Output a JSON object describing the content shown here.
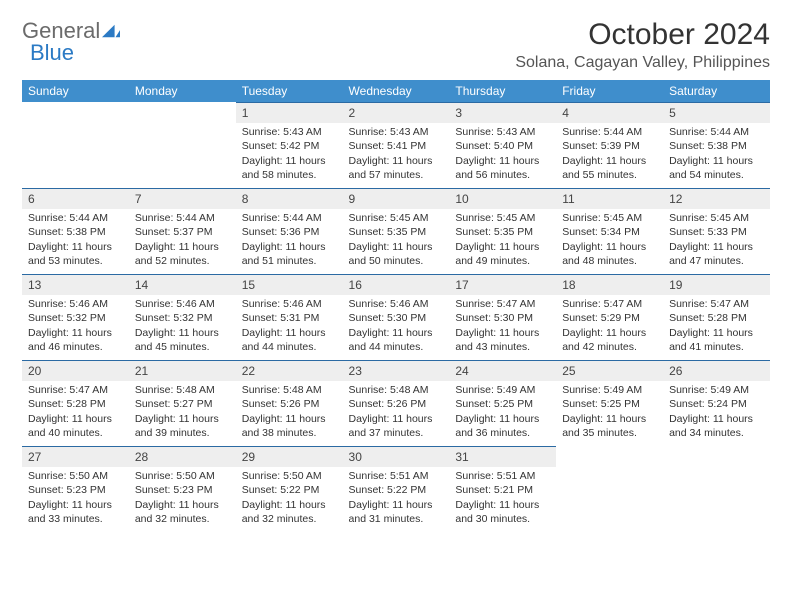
{
  "logo": {
    "word1": "General",
    "word2": "Blue"
  },
  "title": "October 2024",
  "location": "Solana, Cagayan Valley, Philippines",
  "colors": {
    "header_bg": "#3f8ecc",
    "daynum_bg": "#eeeeee",
    "row_border": "#2b6aa3",
    "logo_gray": "#6b6b6b",
    "logo_blue": "#2b7ac4"
  },
  "weekdays": [
    "Sunday",
    "Monday",
    "Tuesday",
    "Wednesday",
    "Thursday",
    "Friday",
    "Saturday"
  ],
  "first_weekday_index": 2,
  "days": [
    {
      "n": 1,
      "sr": "5:43 AM",
      "ss": "5:42 PM",
      "dl": "11 hours and 58 minutes."
    },
    {
      "n": 2,
      "sr": "5:43 AM",
      "ss": "5:41 PM",
      "dl": "11 hours and 57 minutes."
    },
    {
      "n": 3,
      "sr": "5:43 AM",
      "ss": "5:40 PM",
      "dl": "11 hours and 56 minutes."
    },
    {
      "n": 4,
      "sr": "5:44 AM",
      "ss": "5:39 PM",
      "dl": "11 hours and 55 minutes."
    },
    {
      "n": 5,
      "sr": "5:44 AM",
      "ss": "5:38 PM",
      "dl": "11 hours and 54 minutes."
    },
    {
      "n": 6,
      "sr": "5:44 AM",
      "ss": "5:38 PM",
      "dl": "11 hours and 53 minutes."
    },
    {
      "n": 7,
      "sr": "5:44 AM",
      "ss": "5:37 PM",
      "dl": "11 hours and 52 minutes."
    },
    {
      "n": 8,
      "sr": "5:44 AM",
      "ss": "5:36 PM",
      "dl": "11 hours and 51 minutes."
    },
    {
      "n": 9,
      "sr": "5:45 AM",
      "ss": "5:35 PM",
      "dl": "11 hours and 50 minutes."
    },
    {
      "n": 10,
      "sr": "5:45 AM",
      "ss": "5:35 PM",
      "dl": "11 hours and 49 minutes."
    },
    {
      "n": 11,
      "sr": "5:45 AM",
      "ss": "5:34 PM",
      "dl": "11 hours and 48 minutes."
    },
    {
      "n": 12,
      "sr": "5:45 AM",
      "ss": "5:33 PM",
      "dl": "11 hours and 47 minutes."
    },
    {
      "n": 13,
      "sr": "5:46 AM",
      "ss": "5:32 PM",
      "dl": "11 hours and 46 minutes."
    },
    {
      "n": 14,
      "sr": "5:46 AM",
      "ss": "5:32 PM",
      "dl": "11 hours and 45 minutes."
    },
    {
      "n": 15,
      "sr": "5:46 AM",
      "ss": "5:31 PM",
      "dl": "11 hours and 44 minutes."
    },
    {
      "n": 16,
      "sr": "5:46 AM",
      "ss": "5:30 PM",
      "dl": "11 hours and 44 minutes."
    },
    {
      "n": 17,
      "sr": "5:47 AM",
      "ss": "5:30 PM",
      "dl": "11 hours and 43 minutes."
    },
    {
      "n": 18,
      "sr": "5:47 AM",
      "ss": "5:29 PM",
      "dl": "11 hours and 42 minutes."
    },
    {
      "n": 19,
      "sr": "5:47 AM",
      "ss": "5:28 PM",
      "dl": "11 hours and 41 minutes."
    },
    {
      "n": 20,
      "sr": "5:47 AM",
      "ss": "5:28 PM",
      "dl": "11 hours and 40 minutes."
    },
    {
      "n": 21,
      "sr": "5:48 AM",
      "ss": "5:27 PM",
      "dl": "11 hours and 39 minutes."
    },
    {
      "n": 22,
      "sr": "5:48 AM",
      "ss": "5:26 PM",
      "dl": "11 hours and 38 minutes."
    },
    {
      "n": 23,
      "sr": "5:48 AM",
      "ss": "5:26 PM",
      "dl": "11 hours and 37 minutes."
    },
    {
      "n": 24,
      "sr": "5:49 AM",
      "ss": "5:25 PM",
      "dl": "11 hours and 36 minutes."
    },
    {
      "n": 25,
      "sr": "5:49 AM",
      "ss": "5:25 PM",
      "dl": "11 hours and 35 minutes."
    },
    {
      "n": 26,
      "sr": "5:49 AM",
      "ss": "5:24 PM",
      "dl": "11 hours and 34 minutes."
    },
    {
      "n": 27,
      "sr": "5:50 AM",
      "ss": "5:23 PM",
      "dl": "11 hours and 33 minutes."
    },
    {
      "n": 28,
      "sr": "5:50 AM",
      "ss": "5:23 PM",
      "dl": "11 hours and 32 minutes."
    },
    {
      "n": 29,
      "sr": "5:50 AM",
      "ss": "5:22 PM",
      "dl": "11 hours and 32 minutes."
    },
    {
      "n": 30,
      "sr": "5:51 AM",
      "ss": "5:22 PM",
      "dl": "11 hours and 31 minutes."
    },
    {
      "n": 31,
      "sr": "5:51 AM",
      "ss": "5:21 PM",
      "dl": "11 hours and 30 minutes."
    }
  ],
  "labels": {
    "sunrise": "Sunrise:",
    "sunset": "Sunset:",
    "daylight": "Daylight:"
  }
}
